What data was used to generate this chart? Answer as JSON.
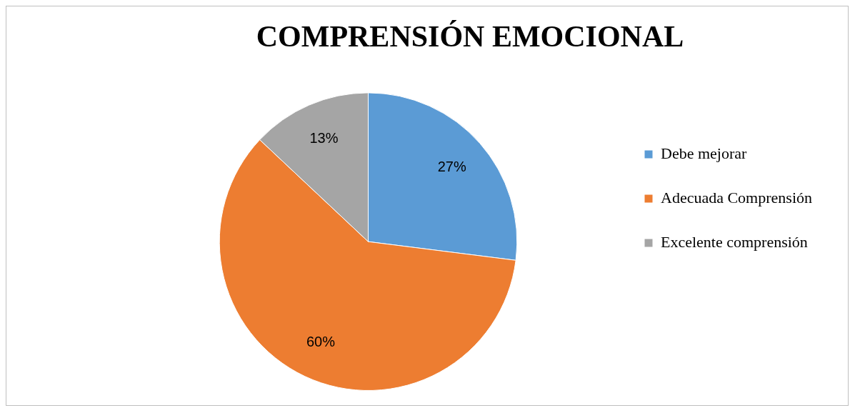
{
  "chart_data": {
    "type": "pie",
    "title": "COMPRENSIÓN EMOCIONAL",
    "categories": [
      "Debe mejorar",
      "Adecuada Comprensión",
      "Excelente comprensión"
    ],
    "values": [
      27,
      60,
      13
    ],
    "colors": [
      "#5b9bd5",
      "#ed7d31",
      "#a5a5a5"
    ],
    "value_labels": [
      "27%",
      "60%",
      "13%"
    ],
    "legend": "right"
  }
}
